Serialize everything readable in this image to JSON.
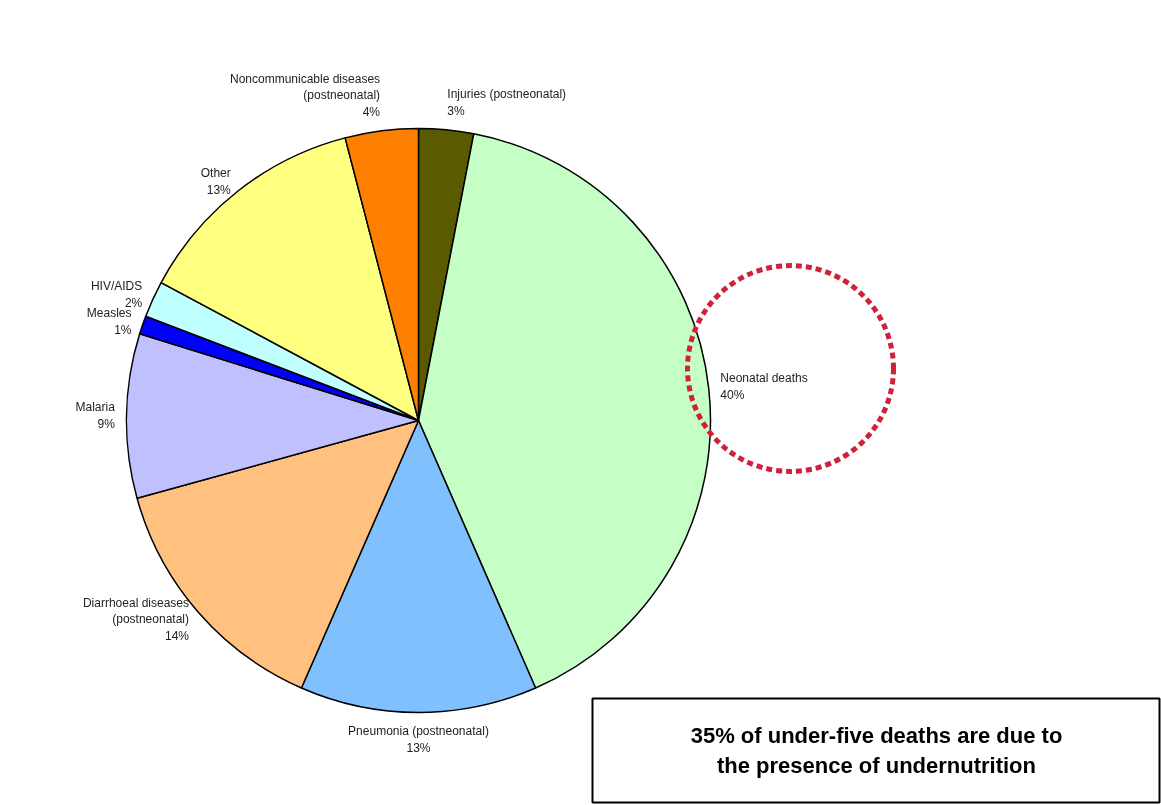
{
  "chart_data": {
    "type": "pie",
    "categories": [
      "Injuries (postneonatal)",
      "Neonatal deaths",
      "Pneumonia (postneonatal)",
      "Diarrhoeal diseases (postneonatal)",
      "Malaria",
      "Measles",
      "HIV/AIDS",
      "Other",
      "Noncommunicable diseases (postneonatal)"
    ],
    "values": [
      3,
      40,
      13,
      14,
      9,
      1,
      2,
      13,
      4
    ],
    "value_labels": [
      "3%",
      "40%",
      "13%",
      "14%",
      "9%",
      "1%",
      "2%",
      "13%",
      "4%"
    ],
    "colors": [
      "#5a5a00",
      "#c6ffc6",
      "#80c0ff",
      "#ffc080",
      "#c0c0ff",
      "#0000ff",
      "#c0ffff",
      "#ffff80",
      "#ff8000"
    ],
    "annotations": [
      "35% of under-five deaths are due to the presence of undernutrition"
    ]
  }
}
